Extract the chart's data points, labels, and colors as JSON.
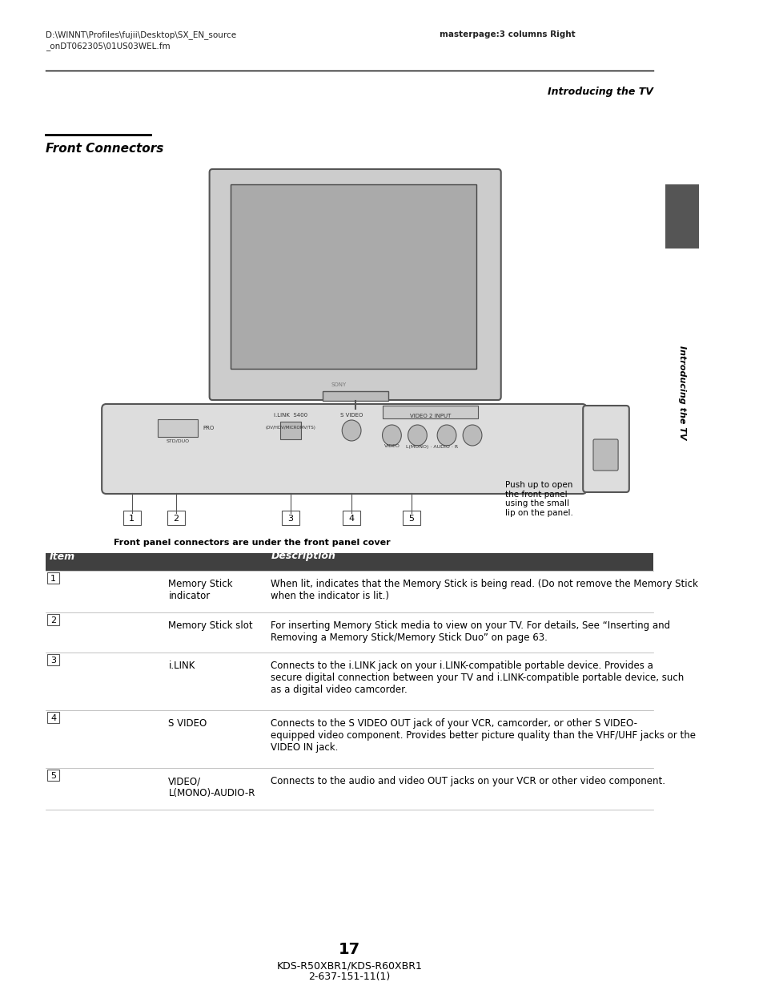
{
  "page_background": "#ffffff",
  "header_left_line1": "D:\\WINNT\\Profiles\\fujii\\Desktop\\SX_EN_source",
  "header_left_line2": "_onDT062305\\01US03WEL.fm",
  "header_right": "masterpage:3 columns Right",
  "section_title": "Introducing the TV",
  "section_title_italic": true,
  "page_title": "Front Connectors",
  "page_title_bold": true,
  "page_title_italic": true,
  "caption": "Front panel connectors are under the front panel cover",
  "push_text": "Push up to open\nthe front panel\nusing the small\nlip on the panel.",
  "side_tab_text": "Introducing the TV",
  "table_header_bg": "#404040",
  "table_header_color": "#ffffff",
  "table_header_item": "Item",
  "table_header_desc": "Description",
  "table_rows": [
    {
      "num": "1",
      "item": "Memory Stick\nindicator",
      "description": "When lit, indicates that the Memory Stick is being read. (Do not remove the Memory Stick\nwhen the indicator is lit.)"
    },
    {
      "num": "2",
      "item": "Memory Stick slot",
      "description": "For inserting Memory Stick media to view on your TV. For details, See “Inserting and\nRemoving a Memory Stick/Memory Stick Duo” on page 63."
    },
    {
      "num": "3",
      "item": "i.LINK",
      "description": "Connects to the i.LINK jack on your i.LINK-compatible portable device. Provides a\nsecure digital connection between your TV and i.LINK-compatible portable device, such\nas a digital video camcorder."
    },
    {
      "num": "4",
      "item": "S VIDEO",
      "description": "Connects to the S VIDEO OUT jack of your VCR, camcorder, or other S VIDEO-\nequipped video component. Provides better picture quality than the VHF/UHF jacks or the\nVIDEO IN jack."
    },
    {
      "num": "5",
      "item": "VIDEO/\nL(MONO)-AUDIO-R",
      "description": "Connects to the audio and video OUT jacks on your VCR or other video component."
    }
  ],
  "page_number": "17",
  "footer_left": "KDS-R50XBR1/KDS-R60XBR1",
  "footer_right": "2-637-151-11(1)"
}
